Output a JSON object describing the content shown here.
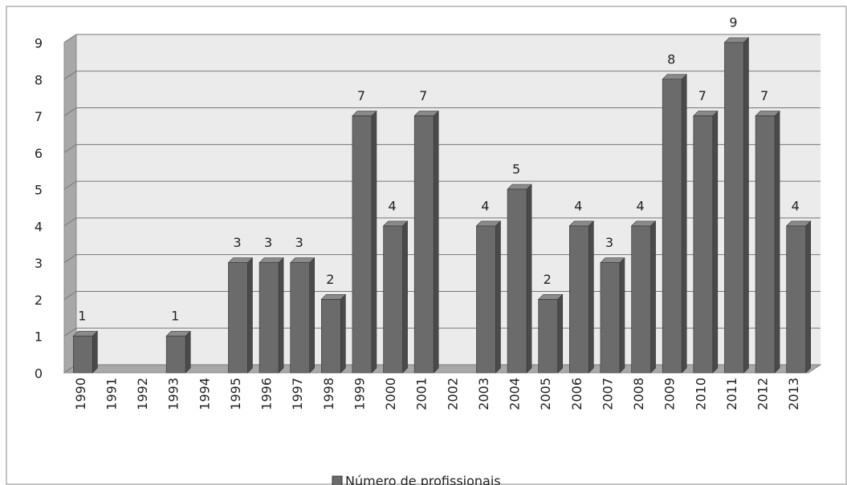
{
  "chart_data": {
    "type": "bar3d",
    "categories": [
      "1990",
      "1991",
      "1992",
      "1993",
      "1994",
      "1995",
      "1996",
      "1997",
      "1998",
      "1999",
      "2000",
      "2001",
      "2002",
      "2003",
      "2004",
      "2005",
      "2006",
      "2007",
      "2008",
      "2009",
      "2010",
      "2011",
      "2012",
      "2013"
    ],
    "series": [
      {
        "name": "Número de profissionais",
        "color": "#6b6b6b",
        "values": [
          1,
          null,
          null,
          1,
          null,
          3,
          3,
          3,
          2,
          7,
          4,
          7,
          null,
          4,
          5,
          2,
          4,
          3,
          4,
          8,
          7,
          9,
          7,
          4
        ]
      }
    ],
    "ylim": [
      0,
      9
    ],
    "yticks": [
      0,
      1,
      2,
      3,
      4,
      5,
      6,
      7,
      8,
      9
    ],
    "grid": true,
    "legend": "bottom"
  }
}
